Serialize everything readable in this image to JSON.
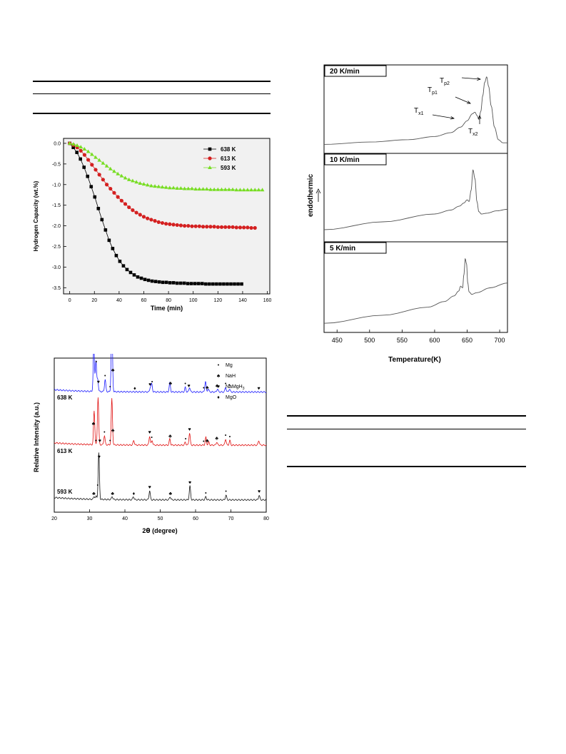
{
  "chart_data": [
    {
      "type": "scatter",
      "xlabel": "Time (min)",
      "ylabel": "Hydrogen Capacity (wt.%)",
      "xlim": [
        -5,
        162
      ],
      "ylim": [
        -3.65,
        0.12
      ],
      "xticks": [
        0,
        20,
        40,
        60,
        80,
        100,
        120,
        140,
        160
      ],
      "xtick_labels": [
        "0",
        "20",
        "40",
        "60",
        "80",
        "100",
        "120",
        "140",
        "160"
      ],
      "yticks": [
        0.0,
        -0.5,
        -1.0,
        -1.5,
        -2.0,
        -2.5,
        -3.0,
        -3.5
      ],
      "ytick_labels": [
        "0.0",
        "-0.5",
        "-1.0",
        "-1.5",
        "-2.0",
        "-2.5",
        "-3.0",
        "-3.5"
      ],
      "legend_position": "top-right",
      "series": [
        {
          "name": "638 K",
          "color": "#000000",
          "marker": "square",
          "x": [
            0,
            2.9,
            5.8,
            8.7,
            11.6,
            14.5,
            17.4,
            20.3,
            23.2,
            26.1,
            29,
            31.9,
            34.8,
            37.7,
            40.6,
            43.5,
            46.4,
            49.3,
            52.2,
            55.1,
            58,
            60.9,
            63.8,
            66.7,
            69.6,
            72.5,
            75.4,
            78.3,
            81.2,
            84.1,
            87,
            89.9,
            92.8,
            95.7,
            98.6,
            101.5,
            104.4,
            107.3,
            110.2,
            113.1,
            116,
            118.9,
            121.8,
            124.7,
            127.6,
            130.5,
            133.4,
            136.3,
            139.2
          ],
          "y": [
            0,
            -0.1,
            -0.22,
            -0.38,
            -0.58,
            -0.8,
            -1.05,
            -1.3,
            -1.58,
            -1.85,
            -2.1,
            -2.35,
            -2.55,
            -2.72,
            -2.86,
            -2.97,
            -3.06,
            -3.13,
            -3.19,
            -3.24,
            -3.27,
            -3.3,
            -3.32,
            -3.34,
            -3.35,
            -3.36,
            -3.37,
            -3.37,
            -3.38,
            -3.38,
            -3.39,
            -3.39,
            -3.39,
            -3.4,
            -3.4,
            -3.4,
            -3.4,
            -3.4,
            -3.41,
            -3.41,
            -3.41,
            -3.41,
            -3.41,
            -3.41,
            -3.41,
            -3.41,
            -3.41,
            -3.41,
            -3.41
          ]
        },
        {
          "name": "613 K",
          "color": "#d42020",
          "marker": "circle",
          "x": [
            0,
            3,
            6,
            9,
            12,
            15,
            18,
            21,
            24,
            27,
            30,
            33,
            36,
            39,
            42,
            45,
            48,
            51,
            54,
            57,
            60,
            63,
            66,
            69,
            72,
            75,
            78,
            81,
            84,
            87,
            90,
            93,
            96,
            99,
            102,
            105,
            108,
            111,
            114,
            117,
            120,
            123,
            126,
            129,
            132,
            135,
            138,
            141,
            144,
            147,
            150
          ],
          "y": [
            0,
            -0.04,
            -0.1,
            -0.18,
            -0.28,
            -0.4,
            -0.52,
            -0.64,
            -0.76,
            -0.88,
            -1.0,
            -1.1,
            -1.2,
            -1.3,
            -1.39,
            -1.47,
            -1.55,
            -1.62,
            -1.68,
            -1.73,
            -1.78,
            -1.82,
            -1.85,
            -1.88,
            -1.91,
            -1.93,
            -1.95,
            -1.96,
            -1.97,
            -1.98,
            -1.99,
            -2.0,
            -2.0,
            -2.01,
            -2.01,
            -2.01,
            -2.02,
            -2.02,
            -2.02,
            -2.02,
            -2.03,
            -2.03,
            -2.03,
            -2.03,
            -2.03,
            -2.04,
            -2.04,
            -2.04,
            -2.04,
            -2.05,
            -2.05
          ]
        },
        {
          "name": "593 K",
          "color": "#77dd22",
          "marker": "triangle",
          "x": [
            0,
            3,
            6,
            9,
            12,
            15,
            18,
            21,
            24,
            27,
            30,
            33,
            36,
            39,
            42,
            45,
            48,
            51,
            54,
            57,
            60,
            63,
            66,
            69,
            72,
            75,
            78,
            81,
            84,
            87,
            90,
            93,
            96,
            99,
            102,
            105,
            108,
            111,
            114,
            117,
            120,
            123,
            126,
            129,
            132,
            135,
            138,
            141,
            144,
            147,
            150,
            153,
            156
          ],
          "y": [
            0,
            -0.02,
            -0.05,
            -0.09,
            -0.14,
            -0.2,
            -0.27,
            -0.34,
            -0.41,
            -0.48,
            -0.55,
            -0.62,
            -0.68,
            -0.74,
            -0.79,
            -0.84,
            -0.88,
            -0.91,
            -0.94,
            -0.97,
            -0.99,
            -1.01,
            -1.03,
            -1.04,
            -1.05,
            -1.06,
            -1.07,
            -1.08,
            -1.08,
            -1.09,
            -1.09,
            -1.1,
            -1.1,
            -1.1,
            -1.11,
            -1.11,
            -1.11,
            -1.11,
            -1.12,
            -1.12,
            -1.12,
            -1.12,
            -1.12,
            -1.12,
            -1.12,
            -1.13,
            -1.13,
            -1.13,
            -1.13,
            -1.13,
            -1.13,
            -1.13,
            -1.13
          ]
        }
      ]
    },
    {
      "type": "line",
      "xlabel": "2θ (degree)",
      "ylabel": "Relative Intensity (a.u.)",
      "xlim": [
        20,
        80
      ],
      "xticks": [
        20,
        30,
        40,
        50,
        60,
        70,
        80
      ],
      "xtick_labels": [
        "20",
        "30",
        "40",
        "50",
        "60",
        "70",
        "80"
      ],
      "legend_position": "top-right",
      "legend": [
        {
          "symbol": "•",
          "label": "Mg"
        },
        {
          "symbol": "♣",
          "label": "NaH"
        },
        {
          "symbol": "♥",
          "label": "NaMgH3"
        },
        {
          "symbol": "♦",
          "label": "MgO"
        }
      ],
      "series": [
        {
          "name": "638 K",
          "color": "#1a1aff",
          "baseline": 0.78,
          "peaks": [
            [
              31.2,
              0.3
            ],
            [
              31.8,
              0.2
            ],
            [
              32.3,
              0.08
            ],
            [
              34.4,
              0.08
            ],
            [
              36.3,
              0.5
            ],
            [
              47.2,
              0.03
            ],
            [
              47.6,
              0.05
            ],
            [
              52.7,
              0.06
            ],
            [
              57.1,
              0.03
            ],
            [
              58.3,
              0.03
            ],
            [
              62.8,
              0.07
            ],
            [
              63.6,
              0.02
            ],
            [
              66.2,
              0.02
            ],
            [
              68.5,
              0.03
            ],
            [
              69.6,
              0.02
            ]
          ],
          "markers": [
            [
              31.1,
              "♣"
            ],
            [
              31.9,
              "•"
            ],
            [
              32.5,
              "♥"
            ],
            [
              34.4,
              "•"
            ],
            [
              35.8,
              "•"
            ],
            [
              36.6,
              "♣"
            ],
            [
              42.8,
              "♦"
            ],
            [
              47.1,
              "♥"
            ],
            [
              47.7,
              "•"
            ],
            [
              52.9,
              "♣"
            ],
            [
              57.1,
              "•"
            ],
            [
              58.1,
              "♥"
            ],
            [
              62.3,
              "•"
            ],
            [
              63.3,
              "♣"
            ],
            [
              66.1,
              "♣"
            ],
            [
              68.5,
              "•"
            ],
            [
              69.6,
              "•"
            ],
            [
              77.9,
              "♥"
            ]
          ]
        },
        {
          "name": "613 K",
          "color": "#e01010",
          "baseline": 0.435,
          "peaks": [
            [
              31.3,
              0.22
            ],
            [
              32.4,
              0.31
            ],
            [
              34.2,
              0.06
            ],
            [
              36.3,
              0.3
            ],
            [
              42.5,
              0.03
            ],
            [
              47.0,
              0.06
            ],
            [
              47.7,
              0.03
            ],
            [
              52.7,
              0.04
            ],
            [
              57.1,
              0.02
            ],
            [
              58.3,
              0.08
            ],
            [
              62.9,
              0.05
            ],
            [
              63.7,
              0.02
            ],
            [
              66.0,
              0.02
            ],
            [
              68.5,
              0.04
            ],
            [
              69.7,
              0.03
            ],
            [
              77.9,
              0.03
            ]
          ],
          "markers": [
            [
              31.1,
              "♣"
            ],
            [
              31.8,
              "•"
            ],
            [
              32.9,
              "♥"
            ],
            [
              34.2,
              "•"
            ],
            [
              35.8,
              "•"
            ],
            [
              36.6,
              "♣"
            ],
            [
              47.0,
              "♥"
            ],
            [
              47.6,
              "•"
            ],
            [
              52.8,
              "♣"
            ],
            [
              57.2,
              "•"
            ],
            [
              58.3,
              "♥"
            ],
            [
              62.3,
              "•"
            ],
            [
              63.3,
              "♣"
            ],
            [
              66.0,
              "♣"
            ],
            [
              68.5,
              "•"
            ],
            [
              69.7,
              "•"
            ]
          ]
        },
        {
          "name": "593 K",
          "color": "#111111",
          "baseline": 0.08,
          "peaks": [
            [
              31.3,
              0.02
            ],
            [
              31.9,
              0.02
            ],
            [
              32.6,
              0.3
            ],
            [
              36.4,
              0.02
            ],
            [
              42.4,
              0.02
            ],
            [
              47.0,
              0.06
            ],
            [
              52.8,
              0.02
            ],
            [
              58.4,
              0.09
            ],
            [
              62.9,
              0.02
            ],
            [
              68.6,
              0.03
            ],
            [
              78.0,
              0.03
            ]
          ],
          "markers": [
            [
              31.2,
              "♣"
            ],
            [
              32.3,
              "•"
            ],
            [
              32.7,
              "♥"
            ],
            [
              36.5,
              "♣"
            ],
            [
              42.5,
              "♦"
            ],
            [
              47.0,
              "♥"
            ],
            [
              52.9,
              "♣"
            ],
            [
              58.4,
              "♥"
            ],
            [
              62.9,
              "•"
            ],
            [
              68.6,
              "•"
            ],
            [
              78.0,
              "♥"
            ]
          ]
        }
      ]
    },
    {
      "type": "line",
      "xlabel": "Temperature(K)",
      "ylabel": "endothermic",
      "xlim": [
        430,
        712
      ],
      "xticks": [
        450,
        500,
        550,
        600,
        650,
        700
      ],
      "xtick_labels": [
        "450",
        "500",
        "550",
        "600",
        "650",
        "700"
      ],
      "panels": [
        {
          "label": "20 K/min",
          "x": [
            430,
            500,
            560,
            600,
            625,
            640,
            650,
            658,
            662,
            665,
            668,
            671,
            674,
            677,
            680,
            683,
            687,
            692,
            698,
            705,
            712
          ],
          "y": [
            0.06,
            0.09,
            0.12,
            0.16,
            0.21,
            0.28,
            0.36,
            0.45,
            0.47,
            0.43,
            0.38,
            0.48,
            0.68,
            0.85,
            0.92,
            0.8,
            0.55,
            0.28,
            0.12,
            0.08,
            0.08
          ],
          "annotations": [
            "T",
            "p2",
            "T",
            "p1",
            "T",
            "x1",
            "T",
            "x2"
          ]
        },
        {
          "label": "10 K/min",
          "x": [
            430,
            520,
            600,
            625,
            638,
            645,
            650,
            653,
            656,
            659,
            662,
            665,
            668,
            672,
            680,
            695,
            712
          ],
          "y": [
            0.1,
            0.2,
            0.3,
            0.35,
            0.4,
            0.44,
            0.48,
            0.46,
            0.6,
            0.86,
            0.75,
            0.46,
            0.33,
            0.3,
            0.31,
            0.34,
            0.36
          ]
        },
        {
          "label": "5 K/min",
          "x": [
            430,
            520,
            590,
            615,
            630,
            637,
            640,
            643,
            645,
            647,
            649,
            651,
            653,
            657,
            665,
            685,
            712
          ],
          "y": [
            0.06,
            0.16,
            0.26,
            0.33,
            0.4,
            0.46,
            0.52,
            0.5,
            0.66,
            0.86,
            0.8,
            0.56,
            0.45,
            0.42,
            0.44,
            0.5,
            0.56
          ]
        }
      ]
    }
  ]
}
